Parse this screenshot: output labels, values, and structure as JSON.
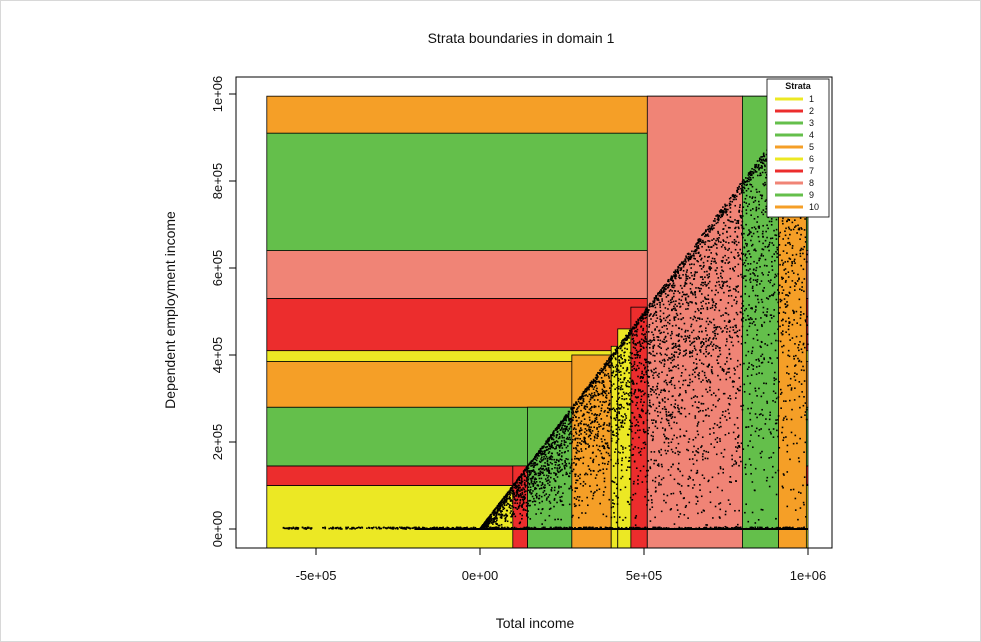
{
  "chart_data": {
    "type": "scatter",
    "title": "Strata boundaries in domain 1",
    "xlabel": "Total income",
    "ylabel": "Dependent employment income",
    "xlim": [
      -650000,
      1000000
    ],
    "ylim": [
      0,
      1000000
    ],
    "x_ticks": [
      {
        "value": -500000,
        "label": "-5e+05"
      },
      {
        "value": 0,
        "label": "0e+00"
      },
      {
        "value": 500000,
        "label": "5e+05"
      },
      {
        "value": 1000000,
        "label": "1e+06"
      }
    ],
    "y_ticks": [
      {
        "value": 0,
        "label": "0e+00"
      },
      {
        "value": 200000,
        "label": "2e+05"
      },
      {
        "value": 400000,
        "label": "4e+05"
      },
      {
        "value": 600000,
        "label": "6e+05"
      },
      {
        "value": 800000,
        "label": "8e+05"
      },
      {
        "value": 1000000,
        "label": "1e+06"
      }
    ],
    "legend": {
      "title": "Strata",
      "position": "top-right",
      "items": [
        {
          "label": "1",
          "color": "#ece824"
        },
        {
          "label": "2",
          "color": "#ec2d2d"
        },
        {
          "label": "3",
          "color": "#64bf4b"
        },
        {
          "label": "4",
          "color": "#64bf4b"
        },
        {
          "label": "5",
          "color": "#f59f27"
        },
        {
          "label": "6",
          "color": "#ece824"
        },
        {
          "label": "7",
          "color": "#ec2d2d"
        },
        {
          "label": "8",
          "color": "#f08476"
        },
        {
          "label": "9",
          "color": "#64bf4b"
        },
        {
          "label": "10",
          "color": "#f59f27"
        }
      ]
    },
    "horizontal_strata": [
      {
        "y0": -50000,
        "y1": 100000,
        "color": "#ece824"
      },
      {
        "y0": 100000,
        "y1": 145000,
        "color": "#ec2d2d"
      },
      {
        "y0": 145000,
        "y1": 280000,
        "color": "#64bf4b"
      },
      {
        "y0": 280000,
        "y1": 385000,
        "color": "#f59f27"
      },
      {
        "y0": 385000,
        "y1": 410000,
        "color": "#ece824"
      },
      {
        "y0": 410000,
        "y1": 530000,
        "color": "#ec2d2d"
      },
      {
        "y0": 530000,
        "y1": 640000,
        "color": "#f08476"
      },
      {
        "y0": 640000,
        "y1": 910000,
        "color": "#64bf4b"
      },
      {
        "y0": 910000,
        "y1": 995000,
        "color": "#f59f27"
      }
    ],
    "vertical_strata": [
      {
        "x0": 100000,
        "x1": 145000,
        "color": "#ec2d2d"
      },
      {
        "x0": 145000,
        "x1": 280000,
        "color": "#64bf4b"
      },
      {
        "x0": 280000,
        "x1": 400000,
        "color": "#f59f27"
      },
      {
        "x0": 400000,
        "x1": 420000,
        "color": "#ece824"
      },
      {
        "x0": 420000,
        "x1": 460000,
        "color": "#ece824"
      },
      {
        "x0": 460000,
        "x1": 510000,
        "color": "#ec2d2d"
      },
      {
        "x0": 510000,
        "x1": 800000,
        "color": "#f08476"
      },
      {
        "x0": 800000,
        "x1": 910000,
        "color": "#64bf4b"
      },
      {
        "x0": 910000,
        "x1": 995000,
        "color": "#f59f27"
      }
    ],
    "points_color": "#000000",
    "grid": false
  }
}
